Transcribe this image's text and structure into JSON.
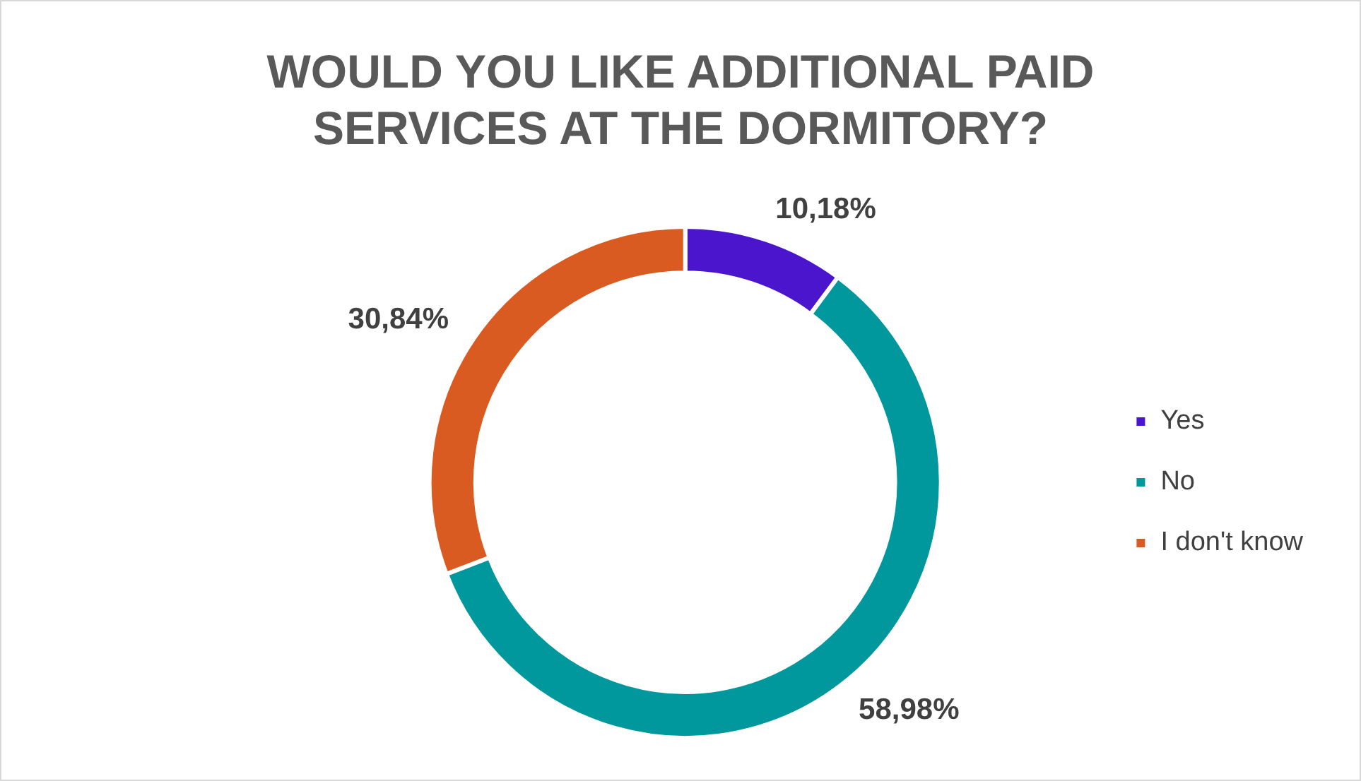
{
  "chart_data": {
    "type": "donut",
    "title": "WOULD YOU LIKE ADDITIONAL PAID SERVICES AT THE DORMITORY?",
    "categories": [
      "Yes",
      "No",
      "I don't know"
    ],
    "values": [
      10.18,
      58.98,
      30.84
    ],
    "colors": [
      "#4a15cc",
      "#00979d",
      "#d95b22"
    ],
    "value_labels": [
      "10,18%",
      "58,98%",
      "30,84%"
    ],
    "legend": "right"
  }
}
